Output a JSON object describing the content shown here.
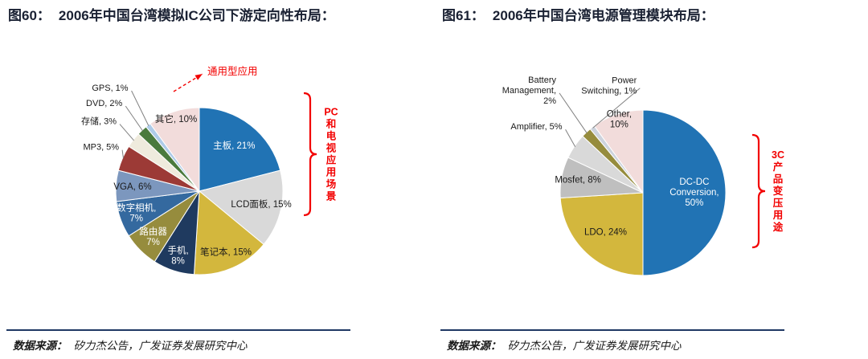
{
  "page": {
    "background": "#FFFFFF"
  },
  "colors": {
    "title_text": "#1A2133",
    "rule": "#1F3864",
    "annotation_red": "#F20000",
    "leader_line": "#808080",
    "slice_stroke": "#FFFFFF",
    "source_text": "#1A1A1A"
  },
  "panels": [
    {
      "figure_label": "图60：",
      "title": "2006年中国台湾模拟IC公司下游定向性布局：",
      "source_label": "数据来源：",
      "source_text": "矽力杰公告，广发证券发展研究中心"
    },
    {
      "figure_label": "图61：",
      "title": "2006年中国台湾电源管理模块布局：",
      "source_label": "数据来源：",
      "source_text": "矽力杰公告，广发证券发展研究中心"
    }
  ],
  "chart_data": [
    {
      "type": "pie",
      "title": "2006年中国台湾模拟IC公司下游定向性布局",
      "start_angle_deg": -90,
      "direction": "clockwise",
      "slices": [
        {
          "name": "主板",
          "value": 21,
          "display": "主板, 21%",
          "color": "#2173B4",
          "pos": "in",
          "tcolor": "#FFFFFF",
          "lr": 0.68
        },
        {
          "name": "LCD面板",
          "value": 15,
          "display": "LCD面板, 15%",
          "color": "#D9D9D9",
          "pos": "in",
          "tcolor": "#1A1A1A",
          "lr": 0.76
        },
        {
          "name": "笔记本",
          "value": 15,
          "display": "笔记本, 15%",
          "color": "#D3B73D",
          "pos": "in",
          "tcolor": "#1A1A1A",
          "lr": 0.8
        },
        {
          "name": "手机",
          "value": 8,
          "display": "手机,\n8%",
          "color": "#1F3A5F",
          "pos": "in",
          "tcolor": "#FFFFFF",
          "lr": 0.82
        },
        {
          "name": "路由器",
          "value": 7,
          "display": "路由器\n7%",
          "color": "#968C3D",
          "pos": "in",
          "tcolor": "#FFFFFF",
          "lr": 0.78
        },
        {
          "name": "数字相机",
          "value": 7,
          "display": "数字相机,\n7%",
          "color": "#34699F",
          "pos": "in",
          "tcolor": "#FFFFFF",
          "lr": 0.8
        },
        {
          "name": "VGA",
          "value": 6,
          "display": "VGA, 6%",
          "color": "#7C97BE",
          "pos": "in",
          "tcolor": "#1A1A1A",
          "lr": 0.8
        },
        {
          "name": "MP3",
          "value": 5,
          "display": "MP3, 5%",
          "color": "#9C3A36",
          "pos": "out",
          "nudge": [
            7,
            -8
          ]
        },
        {
          "name": "存储",
          "value": 3,
          "display": "存储, 3%",
          "color": "#EFEBDD",
          "pos": "out",
          "nudge": [
            -11,
            -15
          ]
        },
        {
          "name": "DVD",
          "value": 2,
          "display": "DVD, 2%",
          "color": "#4A7A3D",
          "pos": "out",
          "nudge": [
            -16,
            -24
          ]
        },
        {
          "name": "GPS",
          "value": 1,
          "display": "GPS, 1%",
          "color": "#AECBE8",
          "pos": "out",
          "nudge": [
            -17,
            -36
          ]
        },
        {
          "name": "其它",
          "value": 10,
          "display": "其它, 10%",
          "color": "#F2DCDB",
          "pos": "in",
          "tcolor": "#1A1A1A",
          "lr": 0.9
        }
      ],
      "annotations": [
        {
          "type": "arrow_label",
          "text": "通用型应用"
        },
        {
          "type": "bracket_label",
          "text": "PC和电视应用场景"
        }
      ]
    },
    {
      "type": "pie",
      "title": "2006年中国台湾电源管理模块布局",
      "start_angle_deg": -90,
      "direction": "clockwise",
      "slices": [
        {
          "name": "DC-DC Conversion",
          "value": 50,
          "display": "DC-DC\nConversion,\n50%",
          "color": "#2173B4",
          "pos": "in",
          "tcolor": "#FFFFFF",
          "lr": 0.62
        },
        {
          "name": "LDO",
          "value": 24,
          "display": "LDO, 24%",
          "color": "#D3B73D",
          "pos": "in",
          "tcolor": "#1A1A1A",
          "lr": 0.66
        },
        {
          "name": "Mosfet",
          "value": 8,
          "display": "Mosfet, 8%",
          "color": "#BFBFBF",
          "pos": "in",
          "tcolor": "#1A1A1A",
          "lr": 0.8
        },
        {
          "name": "Amplifier",
          "value": 5,
          "display": "Amplifier, 5%",
          "color": "#D9D9D9",
          "pos": "out",
          "nudge": [
            -5,
            -17
          ]
        },
        {
          "name": "Battery Management",
          "value": 2,
          "display": "Battery\nManagement,\n2%",
          "color": "#968C3D",
          "pos": "out",
          "nudge": [
            -29,
            -43
          ]
        },
        {
          "name": "Power Switching",
          "value": 1,
          "display": "Power\nSwitching, 1%",
          "color": "#CDD3DD",
          "pos": "out",
          "nudge": [
            63,
            -42
          ]
        },
        {
          "name": "Other",
          "value": 10,
          "display": "Other,\n10%",
          "color": "#F2DCDB",
          "pos": "in",
          "tcolor": "#1A1A1A",
          "lr": 0.93
        }
      ],
      "annotations": [
        {
          "type": "bracket_label",
          "text": "3C产品变压用途"
        }
      ]
    }
  ]
}
